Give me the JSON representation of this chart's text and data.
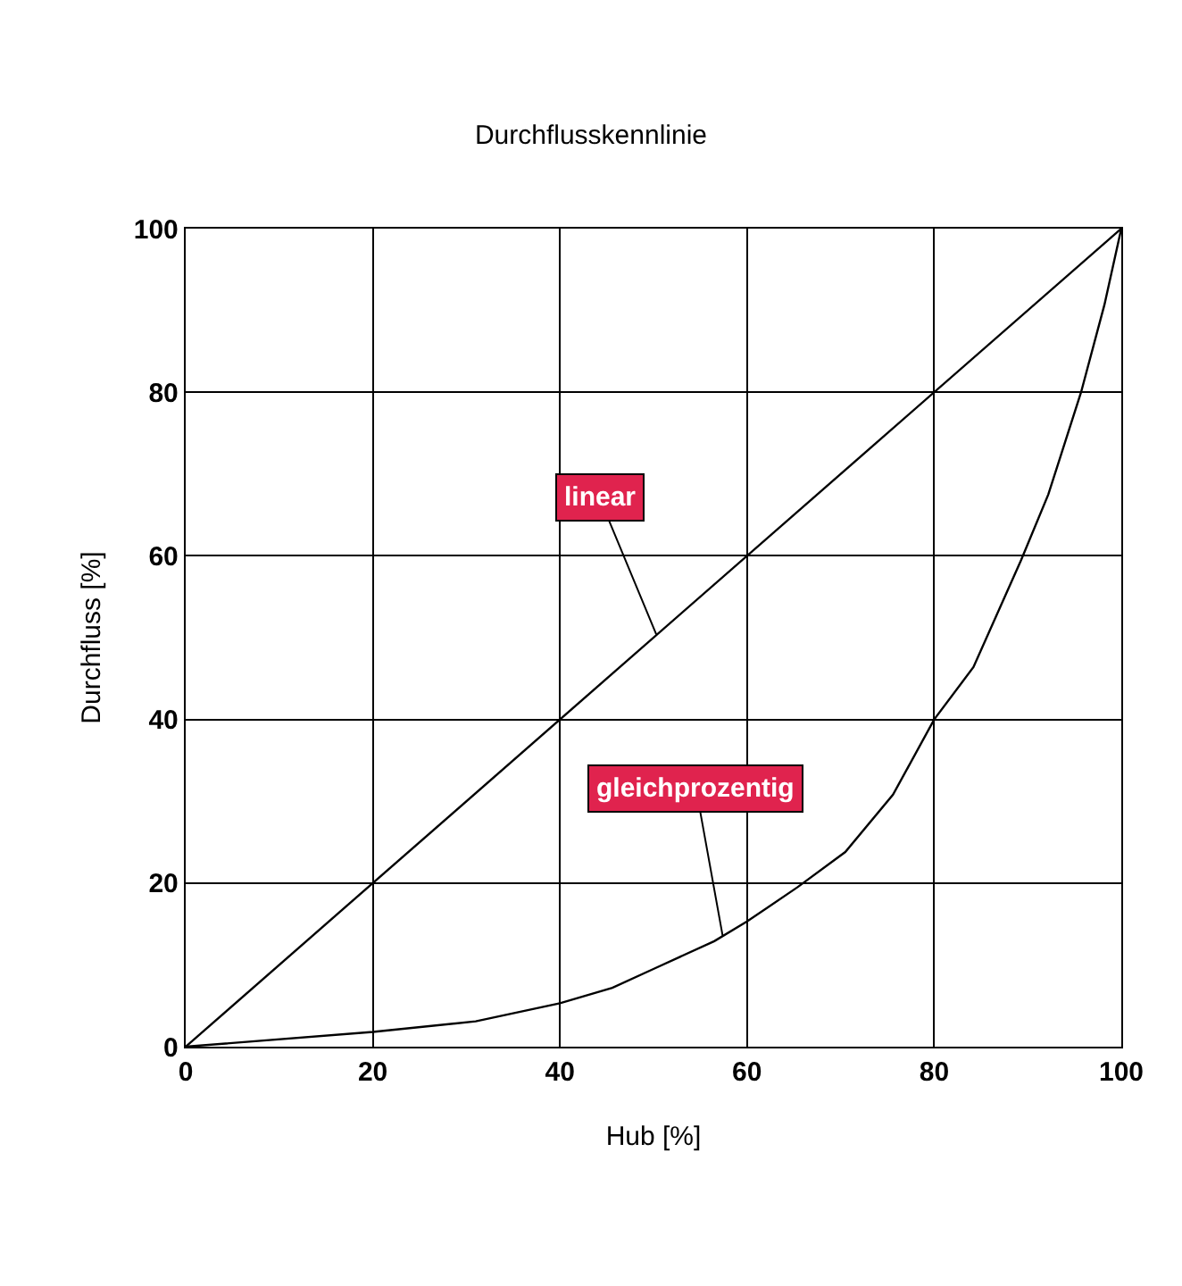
{
  "chart_data": {
    "type": "line",
    "title": "Durchflusskennlinie",
    "xlabel": "Hub [%]",
    "ylabel": "Durchfluss [%]",
    "xlim": [
      0,
      100
    ],
    "xticks": [
      0,
      20,
      40,
      60,
      80,
      100
    ],
    "ylim": [
      0,
      100
    ],
    "yticks": [
      0,
      20,
      40,
      60,
      80,
      100
    ],
    "grid": true,
    "marker": "none",
    "line_style": "solid",
    "series": [
      {
        "color": "#000000",
        "x": [
          0,
          100
        ],
        "values": [
          0,
          100
        ]
      },
      {
        "color": "#000000",
        "x": [
          0,
          20,
          31,
          40,
          45.6,
          50,
          56.5,
          60,
          65.4,
          70.5,
          75.6,
          80,
          84.2,
          89.3,
          92.2,
          95.7,
          98.2,
          100
        ],
        "values": [
          0,
          1.8,
          3.1,
          5.3,
          7.2,
          9.5,
          12.9,
          15.3,
          19.5,
          23.8,
          30.8,
          40,
          46.4,
          59.5,
          67.5,
          80,
          90.7,
          100
        ]
      }
    ],
    "annotations": [
      {
        "text": "linear",
        "x": 50.3,
        "y": 50.4
      },
      {
        "text": "gleichprozentig",
        "x": 57.4,
        "y": 13.5
      }
    ]
  }
}
